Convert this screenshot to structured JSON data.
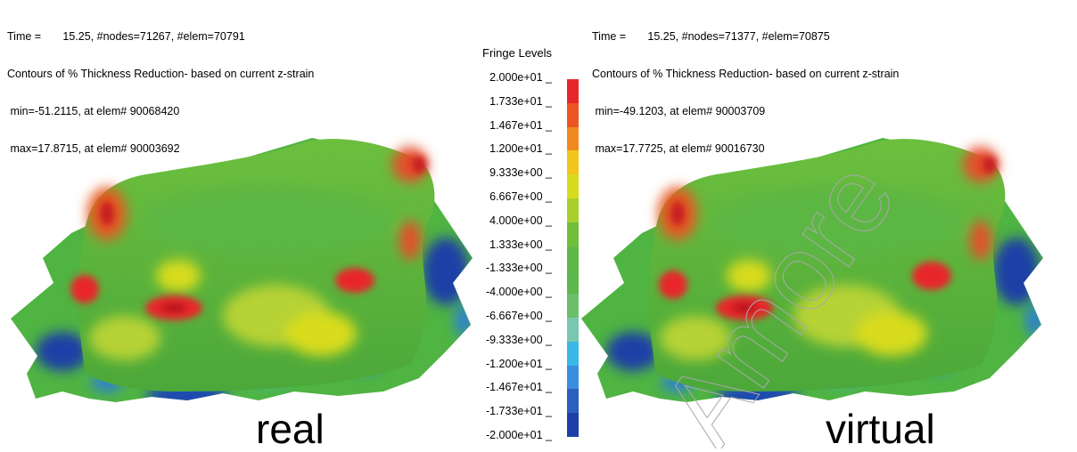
{
  "left_panel": {
    "line_time": "Time =       15.25, #nodes=71267, #elem=70791",
    "line_title": "Contours of % Thickness Reduction- based on current z-strain",
    "line_min": " min=-51.2115, at elem# 90068420",
    "line_max": " max=17.8715, at elem# 90003692",
    "label": "real"
  },
  "right_panel": {
    "line_time": "Time =       15.25, #nodes=71377, #elem=70875",
    "line_title": "Contours of % Thickness Reduction- based on current z-strain",
    "line_min": " min=-49.1203, at elem# 90003709",
    "line_max": " max=17.7725, at elem# 90016730",
    "label": "virtual"
  },
  "legend": {
    "title": "Fringe Levels",
    "values": [
      "2.000e+01",
      "1.733e+01",
      "1.467e+01",
      "1.200e+01",
      "9.333e+00",
      "6.667e+00",
      "4.000e+00",
      "1.333e+00",
      "-1.333e+00",
      "-4.000e+00",
      "-6.667e+00",
      "-9.333e+00",
      "-1.200e+01",
      "-1.467e+01",
      "-1.733e+01",
      "-2.000e+01"
    ],
    "colors": [
      "#e8262a",
      "#ec5522",
      "#f08a1e",
      "#f2c51b",
      "#d8dc1f",
      "#a8cf2c",
      "#70bf3a",
      "#5fba45",
      "#5cb84a",
      "#6bbf6a",
      "#79c7b0",
      "#39b8e6",
      "#3a8ee0",
      "#2a5fbf",
      "#1d3fa8"
    ]
  },
  "watermark": {
    "text": "Amore"
  }
}
